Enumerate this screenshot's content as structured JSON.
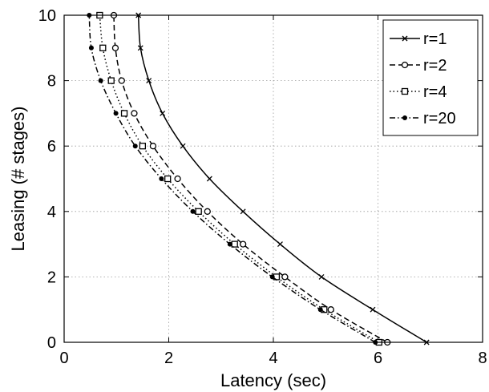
{
  "chart_data": {
    "type": "line",
    "xlabel": "Latency (sec)",
    "ylabel": "Leasing (# stages)",
    "xlim": [
      0,
      8
    ],
    "ylim": [
      0,
      10
    ],
    "xticks": [
      "0",
      "2",
      "4",
      "6",
      "8"
    ],
    "yticks": [
      "0",
      "2",
      "4",
      "6",
      "8",
      "10"
    ],
    "grid": true,
    "legend_position": "top-right",
    "series": [
      {
        "name": "r=1",
        "marker": "x",
        "dash": "solid",
        "x": [
          6.93,
          5.9,
          4.92,
          4.13,
          3.42,
          2.78,
          2.27,
          1.88,
          1.62,
          1.46,
          1.42
        ],
        "y": [
          0,
          1,
          2,
          3,
          4,
          5,
          6,
          7,
          8,
          9,
          10
        ]
      },
      {
        "name": "r=2",
        "marker": "o",
        "dash": "dashed",
        "x": [
          6.18,
          5.1,
          4.22,
          3.42,
          2.74,
          2.17,
          1.7,
          1.34,
          1.1,
          0.98,
          0.95
        ],
        "y": [
          0,
          1,
          2,
          3,
          4,
          5,
          6,
          7,
          8,
          9,
          10
        ]
      },
      {
        "name": "r=4",
        "marker": "square",
        "dash": "dotted",
        "x": [
          6.02,
          4.97,
          4.06,
          3.26,
          2.57,
          1.98,
          1.5,
          1.15,
          0.9,
          0.74,
          0.68
        ],
        "y": [
          0,
          1,
          2,
          3,
          4,
          5,
          6,
          7,
          8,
          9,
          10
        ]
      },
      {
        "name": "r=20",
        "marker": "dot",
        "dash": "dashdot",
        "x": [
          5.95,
          4.9,
          3.98,
          3.17,
          2.46,
          1.86,
          1.36,
          0.99,
          0.7,
          0.52,
          0.48
        ],
        "y": [
          0,
          1,
          2,
          3,
          4,
          5,
          6,
          7,
          8,
          9,
          10
        ]
      }
    ]
  }
}
